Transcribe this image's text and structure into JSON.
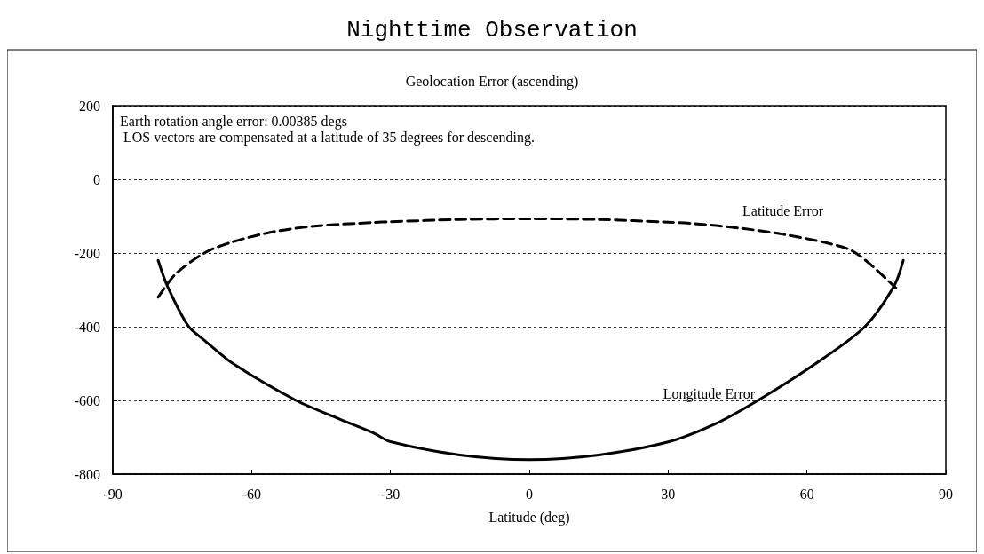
{
  "chart_data": {
    "type": "line",
    "title": "Nighttime Observation",
    "subtitle": "Geolocation Error (ascending)",
    "xlabel": "Latitude (deg)",
    "xlim": [
      -90,
      90
    ],
    "xticks": [
      -90,
      -60,
      -30,
      0,
      30,
      60,
      90
    ],
    "ylim": [
      -800,
      200
    ],
    "yticks": [
      -800,
      -600,
      -400,
      -200,
      0,
      200
    ],
    "grid": "y",
    "marker": "none",
    "annotations": [
      "Earth rotation angle error: 0.00385 degs",
      " LOS vectors are compensated at a latitude of 35 degrees for descending."
    ],
    "series": [
      {
        "name": "Latitude Error",
        "color": "#000000",
        "line_style": "dashed",
        "x": [
          -80.2,
          -76.5,
          -70.2,
          -64.4,
          -56,
          -46.5,
          -33.7,
          -30,
          -15,
          0,
          15,
          30,
          35.6,
          45.2,
          54.8,
          64.4,
          69.6,
          74,
          79.2
        ],
        "values": [
          -320,
          -258,
          -200,
          -171,
          -144,
          -127,
          -117,
          -115,
          -109,
          -107,
          -109,
          -116,
          -120,
          -132,
          -149,
          -173,
          -193,
          -234,
          -295
        ]
      },
      {
        "name": "Longitude Error",
        "color": "#000000",
        "line_style": "solid",
        "x": [
          -80.2,
          -78.2,
          -73.7,
          -70.2,
          -63.8,
          -50.4,
          -41.3,
          -33.7,
          -30,
          -15,
          0,
          15,
          30.2,
          40,
          49.4,
          61.9,
          72.5,
          78.8,
          80.8
        ],
        "values": [
          -220,
          -290,
          -398,
          -437,
          -502,
          -600,
          -649,
          -688,
          -712,
          -748,
          -761,
          -748,
          -712,
          -665,
          -600,
          -500,
          -400,
          -290,
          -220
        ]
      }
    ]
  }
}
